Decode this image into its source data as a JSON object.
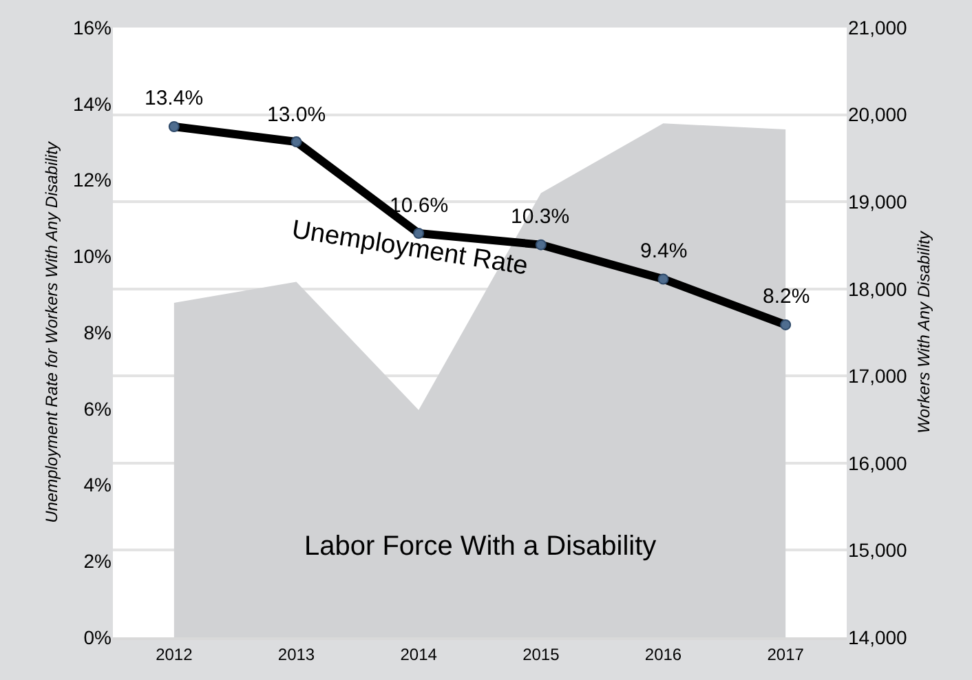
{
  "chart_data": {
    "type": "line",
    "categories": [
      "2012",
      "2013",
      "2014",
      "2015",
      "2016",
      "2017"
    ],
    "ylabel": "Unemployment Rate for Workers With Any Disability",
    "y2label": "Workers With Any Disability",
    "series": [
      {
        "name": "Labor Force With a Disability",
        "type": "area",
        "axis": "y2",
        "color": "#d1d2d4",
        "values": [
          17840,
          18080,
          16610,
          19100,
          19900,
          19830
        ]
      },
      {
        "name": "Unemployment Rate",
        "marker": "circle",
        "color": "#000000",
        "values": [
          13.4,
          13.0,
          10.6,
          10.3,
          9.4,
          8.2
        ],
        "value_labels": [
          "13.4%",
          "13.0%",
          "10.6%",
          "10.3%",
          "9.4%",
          "8.2%"
        ]
      }
    ],
    "ylim": [
      0,
      16
    ],
    "yticks": [
      {
        "value": 0,
        "label": "0%"
      },
      {
        "value": 2,
        "label": "2%"
      },
      {
        "value": 4,
        "label": "4%"
      },
      {
        "value": 6,
        "label": "6%"
      },
      {
        "value": 8,
        "label": "8%"
      },
      {
        "value": 10,
        "label": "10%"
      },
      {
        "value": 12,
        "label": "12%"
      },
      {
        "value": 14,
        "label": "14%"
      },
      {
        "value": 16,
        "label": "16%"
      }
    ],
    "y2lim": [
      14000,
      21000
    ],
    "y2ticks": [
      {
        "value": 14000,
        "label": "14,000"
      },
      {
        "value": 15000,
        "label": "15,000"
      },
      {
        "value": 16000,
        "label": "16,000"
      },
      {
        "value": 17000,
        "label": "17,000"
      },
      {
        "value": 18000,
        "label": "18,000"
      },
      {
        "value": 19000,
        "label": "19,000"
      },
      {
        "value": 20000,
        "label": "20,000"
      },
      {
        "value": 21000,
        "label": "21,000"
      }
    ],
    "grid": "y",
    "legend": false,
    "line_style": "solid"
  }
}
